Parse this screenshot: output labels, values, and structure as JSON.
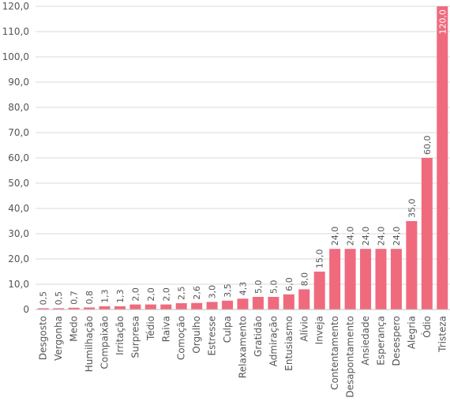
{
  "chart_data": {
    "type": "bar",
    "title": "",
    "xlabel": "",
    "ylabel": "",
    "ylim": [
      0,
      120
    ],
    "ytick_step": 10,
    "ytick_labels": [
      "0",
      "10,0",
      "20,0",
      "30,0",
      "40,0",
      "50,0",
      "60,0",
      "70,0",
      "80,0",
      "90,0",
      "100,0",
      "110,0",
      "120,0"
    ],
    "grid": true,
    "legend": "none",
    "bar_color": "#f06a7e",
    "categories": [
      "Desgosto",
      "Vergonha",
      "Medo",
      "Humilhação",
      "Compaixão",
      "Irritação",
      "Surpresa",
      "Tédio",
      "Raiva",
      "Comoção",
      "Orgulho",
      "Estresse",
      "Culpa",
      "Relaxamento",
      "Gratidão",
      "Admiração",
      "Entusiasmo",
      "Alívio",
      "Inveja",
      "Contentamento",
      "Desapontamento",
      "Ansiedade",
      "Esperança",
      "Desespero",
      "Alegria",
      "Ódio",
      "Tristeza"
    ],
    "values": [
      0.5,
      0.5,
      0.7,
      0.8,
      1.3,
      1.3,
      2.0,
      2.0,
      2.0,
      2.5,
      2.6,
      3.0,
      3.5,
      4.3,
      5.0,
      5.0,
      6.0,
      8.0,
      15.0,
      24.0,
      24.0,
      24.0,
      24.0,
      24.0,
      35.0,
      60.0,
      120.0
    ],
    "value_labels": [
      "0,5",
      "0,5",
      "0,7",
      "0,8",
      "1,3",
      "1,3",
      "2,0",
      "2,0",
      "2,0",
      "2,5",
      "2,6",
      "3,0",
      "3,5",
      "4,3",
      "5,0",
      "5,0",
      "6,0",
      "8,0",
      "15,0",
      "24,0",
      "24,0",
      "24,0",
      "24,0",
      "24,0",
      "35,0",
      "60,0",
      "120,0"
    ]
  }
}
